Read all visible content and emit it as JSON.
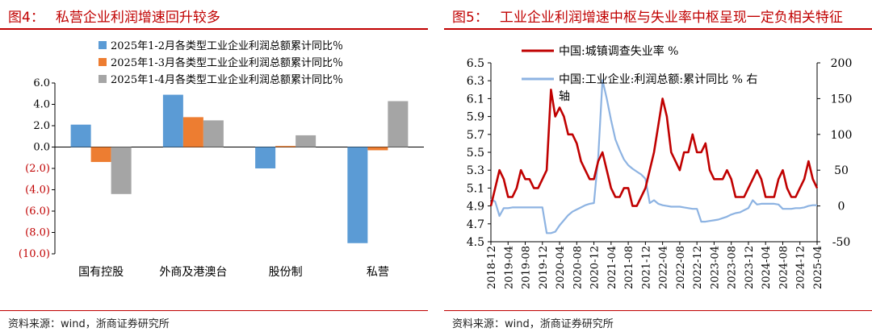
{
  "figures": {
    "left": {
      "number": "图4：",
      "title": "私营企业利润增速回升较多",
      "source": "资料来源：wind，浙商证券研究所"
    },
    "right": {
      "number": "图5：",
      "title": "工业企业利润增速中枢与失业率中枢呈现一定负相关特征",
      "source": "资料来源：wind，浙商证券研究所"
    }
  },
  "colors": {
    "accent_red": "#c00000",
    "negative_tick": "#c00000",
    "bar_series_1": "#5b9bd5",
    "bar_series_2": "#ed7d31",
    "bar_series_3": "#a5a5a5",
    "line_unemployment": "#c00000",
    "line_profit": "#8db3e2"
  },
  "chart_data": [
    {
      "type": "bar",
      "categories": [
        "国有控股",
        "外商及港澳台",
        "股份制",
        "私营"
      ],
      "series": [
        {
          "name": "2025年1-2月各类型工业企业利润总额累计同比％",
          "values": [
            2.1,
            4.9,
            -2.0,
            -9.0
          ]
        },
        {
          "name": "2025年1-3月各类型工业企业利润总额累计同比％",
          "values": [
            -1.4,
            2.8,
            0.1,
            -0.3
          ]
        },
        {
          "name": "2025年1-4月各类型工业企业利润总额累计同比％",
          "values": [
            -4.4,
            2.5,
            1.1,
            4.3
          ]
        }
      ],
      "ylim": [
        -10,
        6
      ],
      "yticks": [
        6,
        4,
        2,
        0,
        -2,
        -4,
        -6,
        -8,
        -10
      ],
      "ytick_labels": [
        "6.0",
        "4.0",
        "2.0",
        "0.0",
        "(2.0)",
        "(4.0)",
        "(6.0)",
        "(8.0)",
        "(10.0)"
      ],
      "legend_position": "top-right",
      "grid": false
    },
    {
      "type": "line",
      "x": [
        "2018-12",
        "2019-01",
        "2019-02",
        "2019-03",
        "2019-04",
        "2019-05",
        "2019-06",
        "2019-07",
        "2019-08",
        "2019-09",
        "2019-10",
        "2019-11",
        "2019-12",
        "2020-01",
        "2020-02",
        "2020-03",
        "2020-04",
        "2020-05",
        "2020-06",
        "2020-07",
        "2020-08",
        "2020-09",
        "2020-10",
        "2020-11",
        "2020-12",
        "2021-01",
        "2021-02",
        "2021-03",
        "2021-04",
        "2021-05",
        "2021-06",
        "2021-07",
        "2021-08",
        "2021-09",
        "2021-10",
        "2021-11",
        "2021-12",
        "2022-01",
        "2022-02",
        "2022-03",
        "2022-04",
        "2022-05",
        "2022-06",
        "2022-07",
        "2022-08",
        "2022-09",
        "2022-10",
        "2022-11",
        "2022-12",
        "2023-01",
        "2023-02",
        "2023-03",
        "2023-04",
        "2023-05",
        "2023-06",
        "2023-07",
        "2023-08",
        "2023-09",
        "2023-10",
        "2023-11",
        "2023-12",
        "2024-01",
        "2024-02",
        "2024-03",
        "2024-04",
        "2024-05",
        "2024-06",
        "2024-07",
        "2024-08",
        "2024-09",
        "2024-10",
        "2024-11",
        "2024-12",
        "2025-01",
        "2025-02",
        "2025-03",
        "2025-04"
      ],
      "xtick_labels": [
        "2018-12",
        "2019-04",
        "2019-08",
        "2019-12",
        "2020-04",
        "2020-08",
        "2020-12",
        "2021-04",
        "2021-08",
        "2021-12",
        "2022-04",
        "2022-08",
        "2022-12",
        "2023-04",
        "2023-08",
        "2023-12",
        "2024-04",
        "2024-08",
        "2024-12",
        "2025-04"
      ],
      "series": [
        {
          "name": "中国:城镇调查失业率 %",
          "axis": "left",
          "values": [
            4.9,
            5.1,
            5.3,
            5.2,
            5.0,
            5.0,
            5.1,
            5.3,
            5.2,
            5.2,
            5.1,
            5.1,
            5.2,
            5.3,
            6.2,
            5.9,
            6.0,
            5.9,
            5.7,
            5.7,
            5.6,
            5.4,
            5.3,
            5.2,
            5.2,
            5.4,
            5.5,
            5.3,
            5.1,
            5.0,
            5.0,
            5.1,
            5.1,
            4.9,
            4.9,
            5.0,
            5.1,
            5.3,
            5.5,
            5.8,
            6.1,
            5.9,
            5.5,
            5.4,
            5.3,
            5.5,
            5.5,
            5.7,
            5.5,
            5.5,
            5.6,
            5.3,
            5.2,
            5.2,
            5.2,
            5.3,
            5.2,
            5.0,
            5.0,
            5.0,
            5.1,
            5.2,
            5.3,
            5.2,
            5.0,
            5.0,
            5.0,
            5.2,
            5.3,
            5.1,
            5.0,
            5.0,
            5.1,
            5.2,
            5.4,
            5.2,
            5.1
          ]
        },
        {
          "name": "中国:工业企业:利润总额:累计同比 % 右轴",
          "axis": "right",
          "values": [
            10,
            6,
            -14,
            -3,
            -3,
            -2,
            -2,
            -2,
            -2,
            -2,
            -2,
            -2,
            -2,
            -38,
            -38,
            -36,
            -27,
            -20,
            -13,
            -8,
            -5,
            -2,
            1,
            3,
            4,
            68,
            176,
            150,
            120,
            93,
            78,
            65,
            57,
            52,
            48,
            44,
            38,
            4,
            8,
            3,
            1,
            0,
            -1,
            -1,
            -1,
            -2,
            -3,
            -4,
            -4,
            -22,
            -22,
            -21,
            -20,
            -19,
            -17,
            -15,
            -12,
            -10,
            -9,
            -6,
            -3,
            8,
            2,
            3,
            3,
            3,
            3,
            2,
            -4,
            -4,
            -4,
            -3,
            -3,
            -2,
            0,
            1,
            1
          ]
        }
      ],
      "ylim_left": [
        4.5,
        6.5
      ],
      "yticks_left": [
        "4.5",
        "4.7",
        "4.9",
        "5.1",
        "5.3",
        "5.5",
        "5.7",
        "5.9",
        "6.1",
        "6.3",
        "6.5"
      ],
      "ylim_right": [
        -50,
        200
      ],
      "yticks_right": [
        "-50",
        "0",
        "50",
        "100",
        "150",
        "200"
      ],
      "legend_position": "top-left",
      "grid": false
    }
  ]
}
